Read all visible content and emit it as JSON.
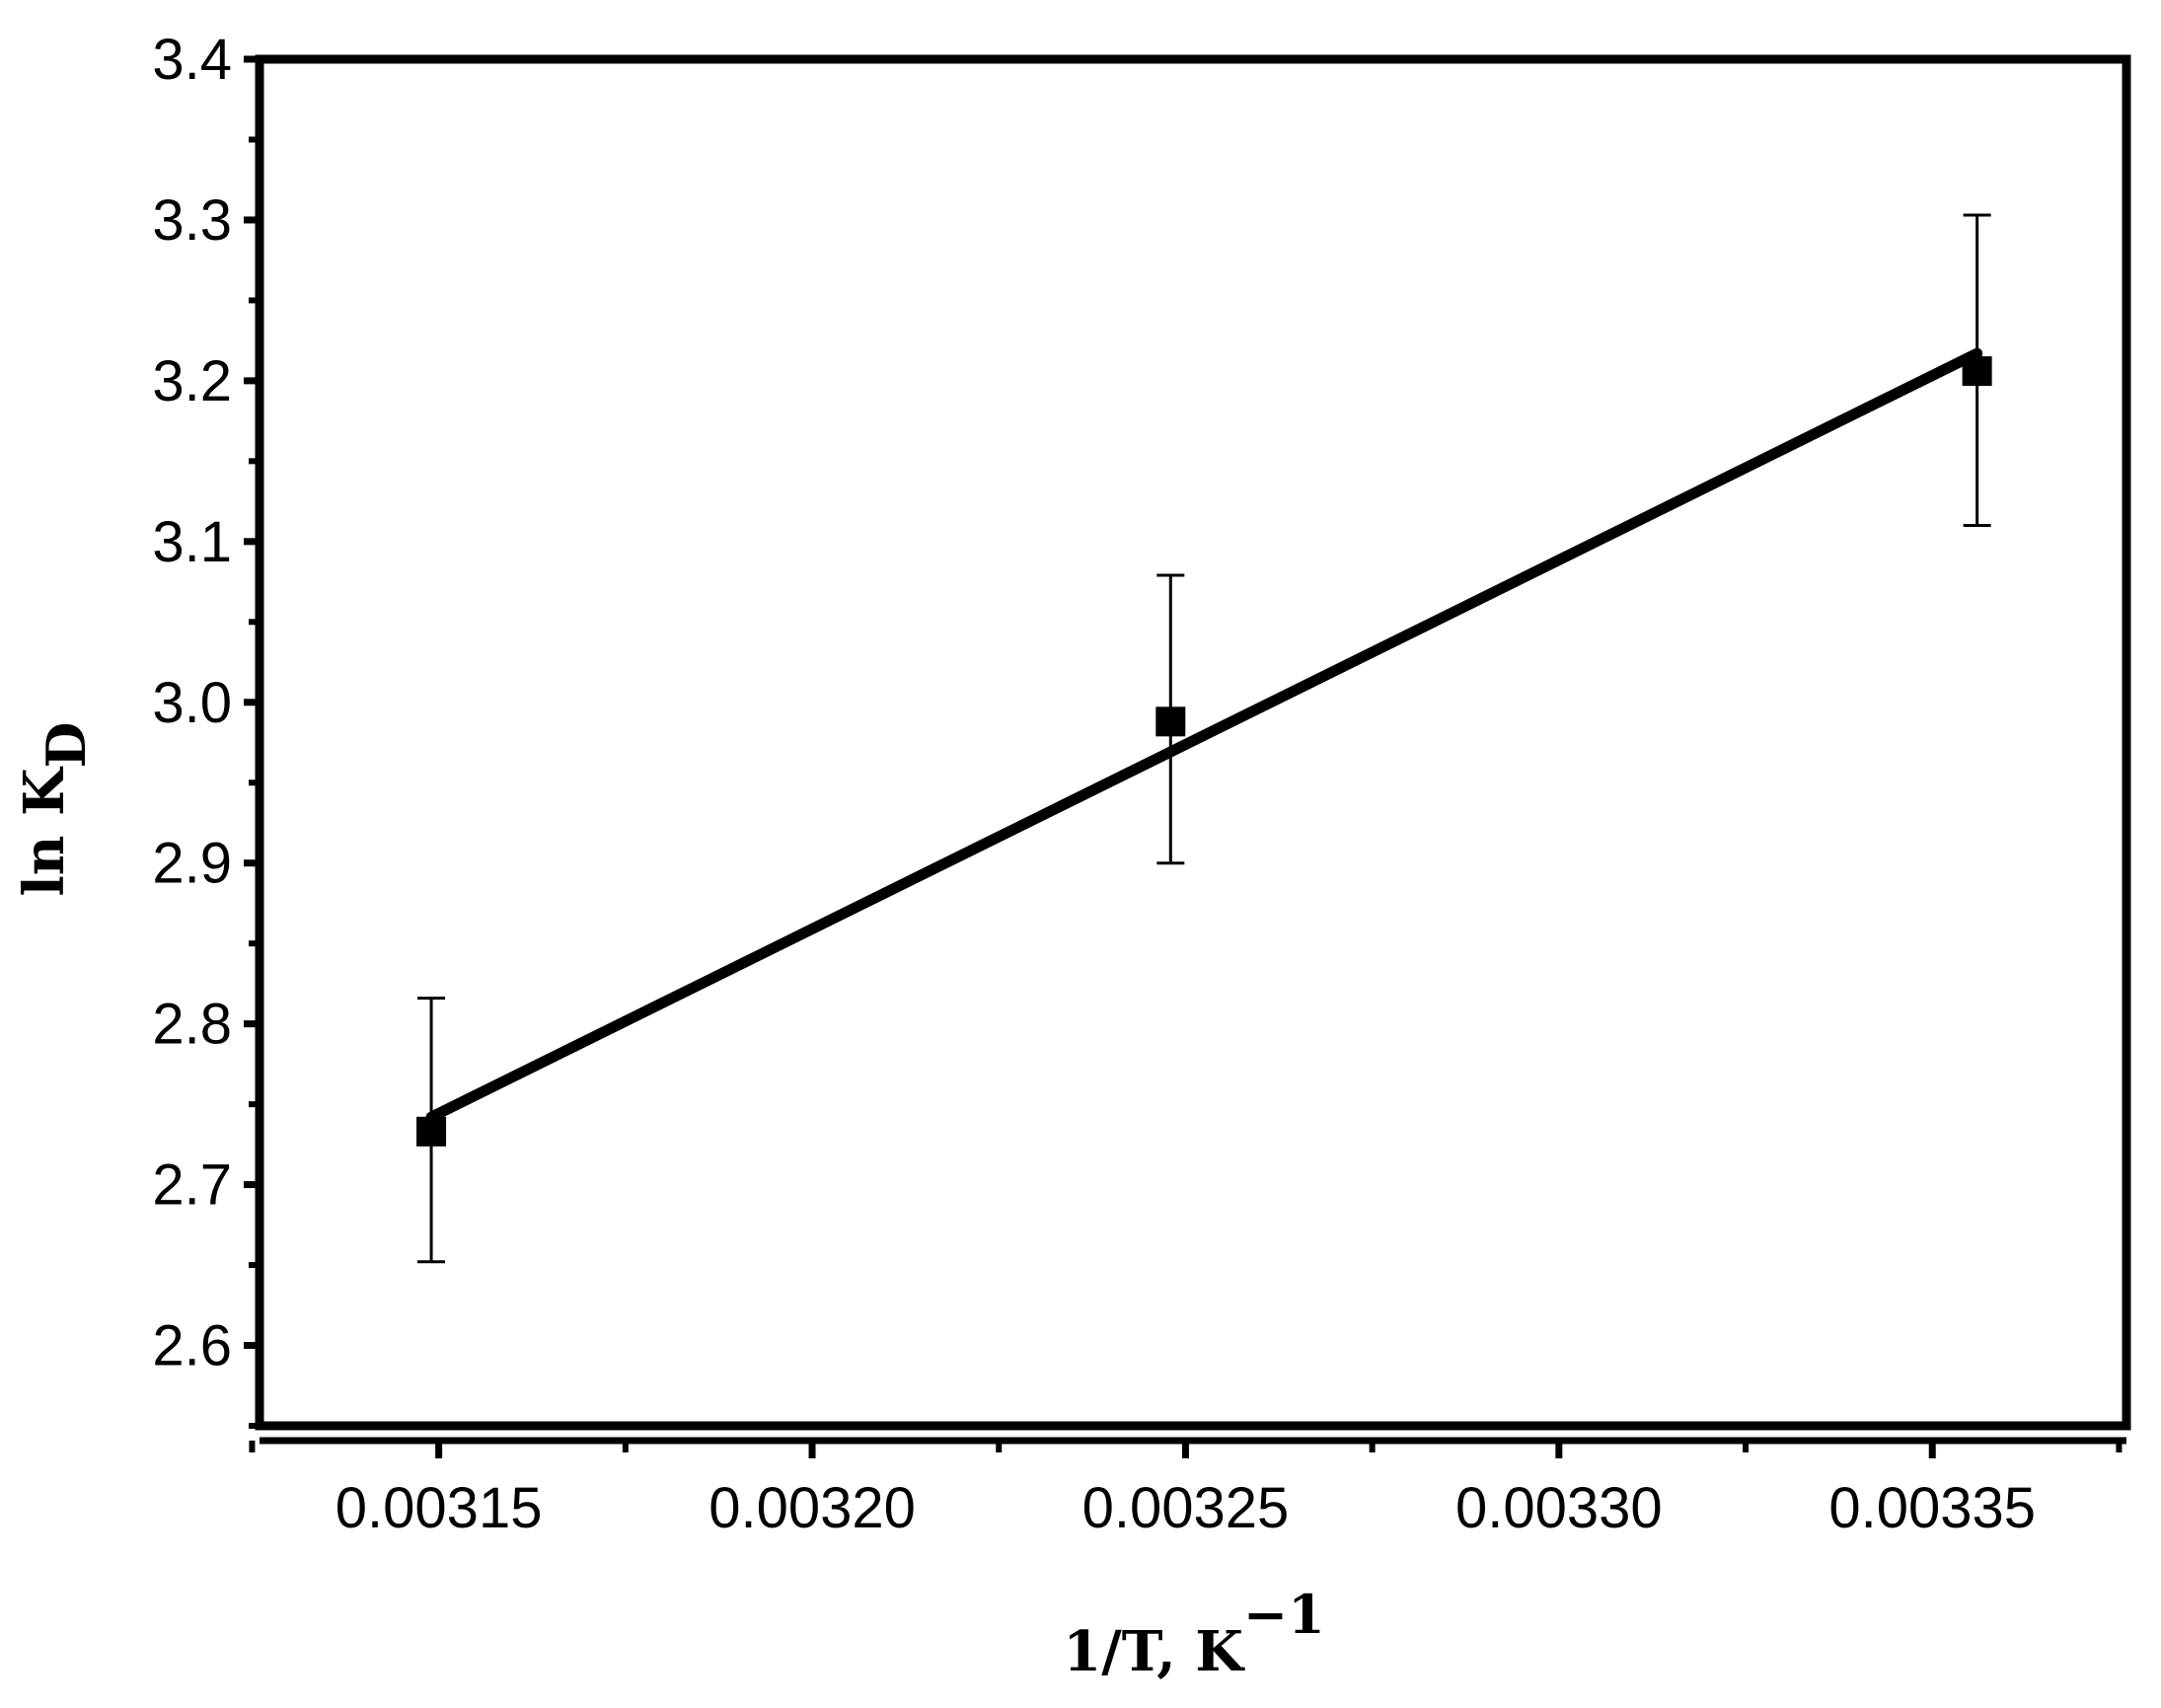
{
  "chart_data": {
    "type": "scatter",
    "title": "",
    "xlabel": "1/T, K",
    "xlabel_superscript": "−1",
    "ylabel": "ln K",
    "ylabel_subscript": "D",
    "xlim": [
      0.003126,
      0.003376
    ],
    "ylim": [
      2.55,
      3.4
    ],
    "x_ticks": [
      0.00315,
      0.0032,
      0.00325,
      0.0033,
      0.00335
    ],
    "x_tick_labels": [
      "0.00315",
      "0.00320",
      "0.00325",
      "0.00330",
      "0.00335"
    ],
    "x_minor_ticks": [
      0.003175,
      0.003225,
      0.003275,
      0.003325,
      0.003375
    ],
    "y_ticks": [
      2.6,
      2.7,
      2.8,
      2.9,
      3.0,
      3.1,
      3.2,
      3.3,
      3.4
    ],
    "y_tick_labels": [
      "2.6",
      "2.7",
      "2.8",
      "2.9",
      "3.0",
      "3.1",
      "3.2",
      "3.3",
      "3.4"
    ],
    "grid": false,
    "series": [
      {
        "x": [
          0.003149,
          0.003248,
          0.003356
        ],
        "y": [
          2.733,
          2.988,
          3.206
        ],
        "y_error_low": [
          2.652,
          2.9,
          3.11
        ],
        "y_error_high": [
          2.816,
          3.079,
          3.303
        ],
        "marker": "square",
        "color": "#000000"
      }
    ],
    "fit_line": {
      "x": [
        0.003149,
        0.003356
      ],
      "y": [
        2.742,
        3.217
      ],
      "color": "#000000"
    }
  }
}
